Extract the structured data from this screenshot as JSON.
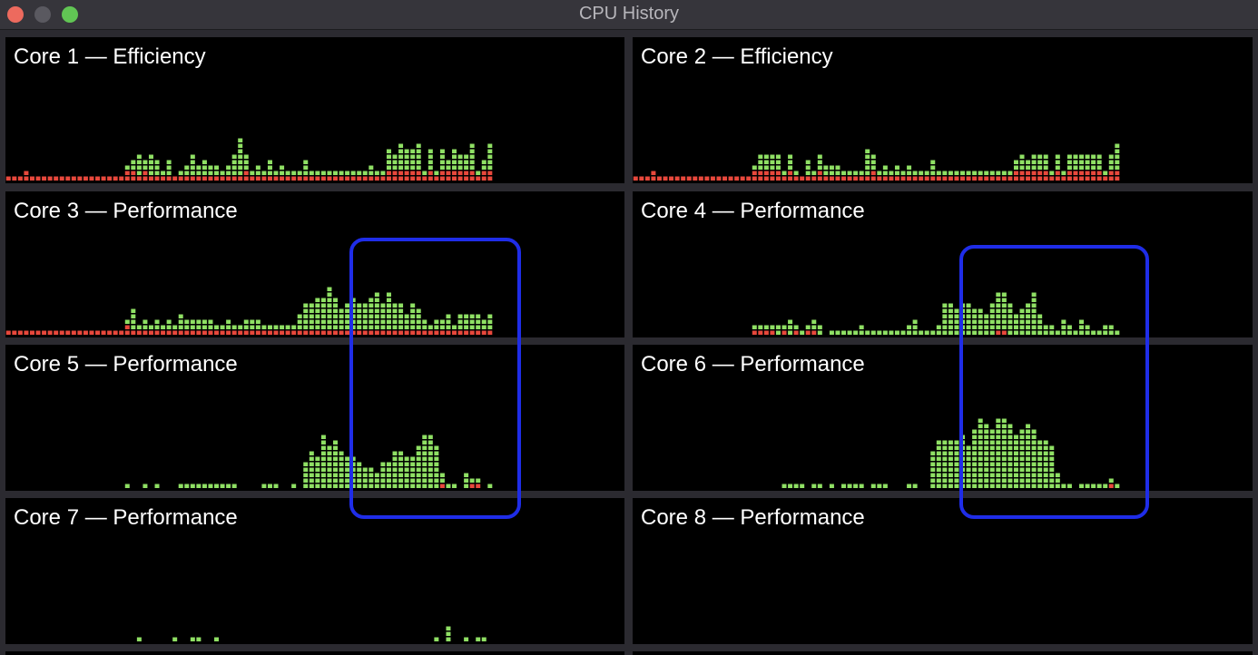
{
  "window": {
    "title": "CPU History"
  },
  "colors": {
    "user": "#8fe064",
    "system": "#e8483c",
    "highlight": "#1f2de8"
  },
  "panels": [
    {
      "title": "Core 1 — Efficiency",
      "user": [
        0,
        0,
        0,
        0,
        0,
        0,
        0,
        0,
        0,
        0,
        0,
        0,
        0,
        0,
        0,
        0,
        0,
        0,
        0,
        0,
        1,
        2,
        4,
        2,
        4,
        3,
        1,
        3,
        0,
        1,
        2,
        4,
        2,
        3,
        2,
        2,
        1,
        2,
        4,
        7,
        3,
        1,
        2,
        1,
        3,
        1,
        2,
        1,
        1,
        1,
        3,
        1,
        1,
        1,
        1,
        1,
        1,
        1,
        1,
        1,
        1,
        2,
        1,
        1,
        4,
        3,
        5,
        4,
        4,
        5,
        1,
        4,
        1,
        4,
        2,
        4,
        3,
        3,
        5,
        1,
        2,
        5
      ],
      "system": [
        1,
        1,
        1,
        2,
        1,
        1,
        1,
        1,
        1,
        1,
        1,
        1,
        1,
        1,
        1,
        1,
        1,
        1,
        1,
        1,
        2,
        2,
        1,
        2,
        1,
        1,
        1,
        1,
        1,
        1,
        1,
        1,
        1,
        1,
        1,
        1,
        1,
        1,
        1,
        1,
        2,
        1,
        1,
        1,
        1,
        1,
        1,
        1,
        1,
        1,
        1,
        1,
        1,
        1,
        1,
        1,
        1,
        1,
        1,
        1,
        1,
        1,
        1,
        1,
        2,
        2,
        2,
        2,
        2,
        2,
        1,
        2,
        1,
        2,
        2,
        2,
        2,
        2,
        2,
        1,
        2,
        2
      ]
    },
    {
      "title": "Core 2 — Efficiency",
      "user": [
        0,
        0,
        0,
        0,
        0,
        0,
        0,
        0,
        0,
        0,
        0,
        0,
        0,
        0,
        0,
        0,
        0,
        0,
        0,
        0,
        1,
        3,
        3,
        3,
        3,
        1,
        3,
        1,
        0,
        3,
        1,
        3,
        2,
        2,
        2,
        1,
        1,
        1,
        1,
        5,
        3,
        1,
        2,
        1,
        2,
        1,
        2,
        1,
        1,
        1,
        3,
        1,
        1,
        1,
        1,
        1,
        1,
        1,
        1,
        1,
        1,
        1,
        1,
        1,
        2,
        3,
        2,
        3,
        3,
        3,
        1,
        3,
        1,
        3,
        3,
        3,
        3,
        3,
        3,
        1,
        3,
        5
      ],
      "system": [
        1,
        1,
        1,
        2,
        1,
        1,
        1,
        1,
        1,
        1,
        1,
        1,
        1,
        1,
        1,
        1,
        1,
        1,
        1,
        1,
        2,
        2,
        2,
        2,
        2,
        1,
        2,
        1,
        1,
        1,
        1,
        2,
        1,
        1,
        1,
        1,
        1,
        1,
        1,
        1,
        2,
        1,
        1,
        1,
        1,
        1,
        1,
        1,
        1,
        1,
        1,
        1,
        1,
        1,
        1,
        1,
        1,
        1,
        1,
        1,
        1,
        1,
        1,
        1,
        2,
        2,
        2,
        2,
        2,
        2,
        1,
        2,
        1,
        2,
        2,
        2,
        2,
        2,
        2,
        1,
        2,
        2
      ]
    },
    {
      "title": "Core 3 — Performance",
      "user": [
        0,
        0,
        0,
        0,
        0,
        0,
        0,
        0,
        0,
        0,
        0,
        0,
        0,
        0,
        0,
        0,
        0,
        0,
        0,
        0,
        1,
        4,
        1,
        2,
        1,
        2,
        1,
        2,
        1,
        3,
        2,
        2,
        2,
        2,
        2,
        1,
        1,
        2,
        1,
        1,
        2,
        2,
        2,
        1,
        1,
        1,
        1,
        1,
        1,
        3,
        5,
        5,
        6,
        6,
        8,
        6,
        4,
        5,
        6,
        5,
        5,
        6,
        7,
        5,
        7,
        5,
        5,
        3,
        5,
        4,
        2,
        1,
        2,
        2,
        3,
        1,
        3,
        3,
        3,
        3,
        2,
        3
      ],
      "system": [
        1,
        1,
        1,
        1,
        1,
        1,
        1,
        1,
        1,
        1,
        1,
        1,
        1,
        1,
        1,
        1,
        1,
        1,
        1,
        1,
        2,
        1,
        1,
        1,
        1,
        1,
        1,
        1,
        1,
        1,
        1,
        1,
        1,
        1,
        1,
        1,
        1,
        1,
        1,
        1,
        1,
        1,
        1,
        1,
        1,
        1,
        1,
        1,
        1,
        1,
        1,
        1,
        1,
        1,
        1,
        1,
        1,
        1,
        1,
        1,
        1,
        1,
        1,
        1,
        1,
        1,
        1,
        1,
        1,
        1,
        1,
        1,
        1,
        1,
        1,
        1,
        1,
        1,
        1,
        1,
        1,
        1
      ]
    },
    {
      "title": "Core 4 — Performance",
      "user": [
        0,
        0,
        0,
        0,
        0,
        0,
        0,
        0,
        0,
        0,
        0,
        0,
        0,
        0,
        0,
        0,
        0,
        0,
        0,
        0,
        1,
        1,
        1,
        1,
        2,
        1,
        3,
        1,
        1,
        1,
        2,
        2,
        0,
        1,
        1,
        1,
        1,
        1,
        2,
        1,
        1,
        1,
        1,
        1,
        1,
        1,
        2,
        3,
        1,
        1,
        1,
        2,
        6,
        6,
        5,
        6,
        6,
        5,
        5,
        4,
        6,
        7,
        7,
        6,
        4,
        5,
        6,
        8,
        4,
        2,
        2,
        1,
        3,
        2,
        1,
        3,
        2,
        1,
        1,
        2,
        2,
        1
      ],
      "system": [
        0,
        0,
        0,
        0,
        0,
        0,
        0,
        0,
        0,
        0,
        0,
        0,
        0,
        0,
        0,
        0,
        0,
        0,
        0,
        0,
        1,
        1,
        1,
        1,
        0,
        1,
        0,
        1,
        0,
        1,
        1,
        0,
        0,
        0,
        0,
        0,
        0,
        0,
        0,
        0,
        0,
        0,
        0,
        0,
        0,
        0,
        0,
        0,
        0,
        0,
        0,
        0,
        0,
        0,
        0,
        0,
        0,
        0,
        0,
        0,
        0,
        1,
        1,
        0,
        0,
        0,
        0,
        0,
        0,
        0,
        0,
        0,
        0,
        0,
        0,
        0,
        0,
        0,
        0,
        0,
        0,
        0
      ]
    },
    {
      "title": "Core 5 — Performance",
      "user": [
        0,
        0,
        0,
        0,
        0,
        0,
        0,
        0,
        0,
        0,
        0,
        0,
        0,
        0,
        0,
        0,
        0,
        0,
        0,
        0,
        1,
        0,
        0,
        1,
        0,
        1,
        0,
        0,
        0,
        1,
        1,
        1,
        1,
        1,
        1,
        1,
        1,
        1,
        1,
        0,
        0,
        0,
        0,
        1,
        1,
        1,
        0,
        0,
        1,
        0,
        5,
        7,
        6,
        10,
        8,
        9,
        7,
        6,
        6,
        5,
        4,
        4,
        3,
        5,
        5,
        7,
        7,
        6,
        6,
        8,
        10,
        10,
        8,
        2,
        1,
        1,
        0,
        3,
        1,
        1,
        0,
        1
      ],
      "system": [
        0,
        0,
        0,
        0,
        0,
        0,
        0,
        0,
        0,
        0,
        0,
        0,
        0,
        0,
        0,
        0,
        0,
        0,
        0,
        0,
        0,
        0,
        0,
        0,
        0,
        0,
        0,
        0,
        0,
        0,
        0,
        0,
        0,
        0,
        0,
        0,
        0,
        0,
        0,
        0,
        0,
        0,
        0,
        0,
        0,
        0,
        0,
        0,
        0,
        0,
        0,
        0,
        0,
        0,
        0,
        0,
        0,
        0,
        0,
        0,
        0,
        0,
        0,
        0,
        0,
        0,
        0,
        0,
        0,
        0,
        0,
        0,
        0,
        1,
        0,
        0,
        0,
        0,
        1,
        1,
        0,
        0
      ]
    },
    {
      "title": "Core 6 — Performance",
      "user": [
        0,
        0,
        0,
        0,
        0,
        0,
        0,
        0,
        0,
        0,
        0,
        0,
        0,
        0,
        0,
        0,
        0,
        0,
        0,
        0,
        0,
        0,
        0,
        0,
        0,
        1,
        1,
        1,
        1,
        0,
        1,
        1,
        0,
        1,
        0,
        1,
        1,
        1,
        1,
        0,
        1,
        1,
        1,
        0,
        0,
        0,
        1,
        1,
        0,
        0,
        7,
        9,
        9,
        9,
        9,
        10,
        8,
        11,
        13,
        12,
        11,
        13,
        13,
        12,
        10,
        11,
        12,
        11,
        9,
        9,
        8,
        3,
        1,
        1,
        0,
        1,
        1,
        1,
        1,
        1,
        1,
        1
      ],
      "system": [
        0,
        0,
        0,
        0,
        0,
        0,
        0,
        0,
        0,
        0,
        0,
        0,
        0,
        0,
        0,
        0,
        0,
        0,
        0,
        0,
        0,
        0,
        0,
        0,
        0,
        0,
        0,
        0,
        0,
        0,
        0,
        0,
        0,
        0,
        0,
        0,
        0,
        0,
        0,
        0,
        0,
        0,
        0,
        0,
        0,
        0,
        0,
        0,
        0,
        0,
        0,
        0,
        0,
        0,
        0,
        0,
        0,
        0,
        0,
        0,
        0,
        0,
        0,
        0,
        0,
        0,
        0,
        0,
        0,
        0,
        0,
        0,
        0,
        0,
        0,
        0,
        0,
        0,
        0,
        0,
        1,
        0
      ]
    },
    {
      "title": "Core 7 — Performance",
      "user": [
        0,
        0,
        0,
        0,
        0,
        0,
        0,
        0,
        0,
        0,
        0,
        0,
        0,
        0,
        0,
        0,
        0,
        0,
        0,
        0,
        0,
        0,
        1,
        0,
        0,
        0,
        0,
        0,
        1,
        0,
        0,
        1,
        1,
        0,
        0,
        1,
        0,
        0,
        0,
        0,
        0,
        0,
        0,
        0,
        0,
        0,
        0,
        0,
        0,
        0,
        0,
        0,
        0,
        0,
        0,
        0,
        0,
        0,
        0,
        0,
        0,
        0,
        0,
        0,
        0,
        0,
        0,
        0,
        0,
        0,
        0,
        0,
        1,
        0,
        3,
        0,
        0,
        1,
        0,
        1,
        1,
        0
      ],
      "system": [
        0,
        0,
        0,
        0,
        0,
        0,
        0,
        0,
        0,
        0,
        0,
        0,
        0,
        0,
        0,
        0,
        0,
        0,
        0,
        0,
        0,
        0,
        0,
        0,
        0,
        0,
        0,
        0,
        0,
        0,
        0,
        0,
        0,
        0,
        0,
        0,
        0,
        0,
        0,
        0,
        0,
        0,
        0,
        0,
        0,
        0,
        0,
        0,
        0,
        0,
        0,
        0,
        0,
        0,
        0,
        0,
        0,
        0,
        0,
        0,
        0,
        0,
        0,
        0,
        0,
        0,
        0,
        0,
        0,
        0,
        0,
        0,
        0,
        0,
        0,
        0,
        0,
        0,
        0,
        0,
        0,
        0
      ]
    },
    {
      "title": "Core 8 — Performance",
      "user": [
        0,
        0,
        0,
        0,
        0,
        0,
        0,
        0,
        0,
        0,
        0,
        0,
        0,
        0,
        0,
        0,
        0,
        0,
        0,
        0,
        0,
        0,
        0,
        0,
        0,
        0,
        0,
        0,
        0,
        0,
        0,
        0,
        0,
        0,
        0,
        0,
        0,
        0,
        0,
        0,
        0,
        0,
        0,
        0,
        0,
        0,
        0,
        0,
        0,
        0,
        0,
        0,
        0,
        0,
        0,
        0,
        0,
        0,
        0,
        0,
        0,
        0,
        0,
        0,
        0,
        0,
        0,
        0,
        0,
        0,
        0,
        0,
        0,
        0,
        0,
        0,
        0,
        0,
        0,
        0,
        0,
        0
      ],
      "system": [
        0,
        0,
        0,
        0,
        0,
        0,
        0,
        0,
        0,
        0,
        0,
        0,
        0,
        0,
        0,
        0,
        0,
        0,
        0,
        0,
        0,
        0,
        0,
        0,
        0,
        0,
        0,
        0,
        0,
        0,
        0,
        0,
        0,
        0,
        0,
        0,
        0,
        0,
        0,
        0,
        0,
        0,
        0,
        0,
        0,
        0,
        0,
        0,
        0,
        0,
        0,
        0,
        0,
        0,
        0,
        0,
        0,
        0,
        0,
        0,
        0,
        0,
        0,
        0,
        0,
        0,
        0,
        0,
        0,
        0,
        0,
        0,
        0,
        0,
        0,
        0,
        0,
        0,
        0,
        0,
        0,
        0
      ]
    }
  ]
}
